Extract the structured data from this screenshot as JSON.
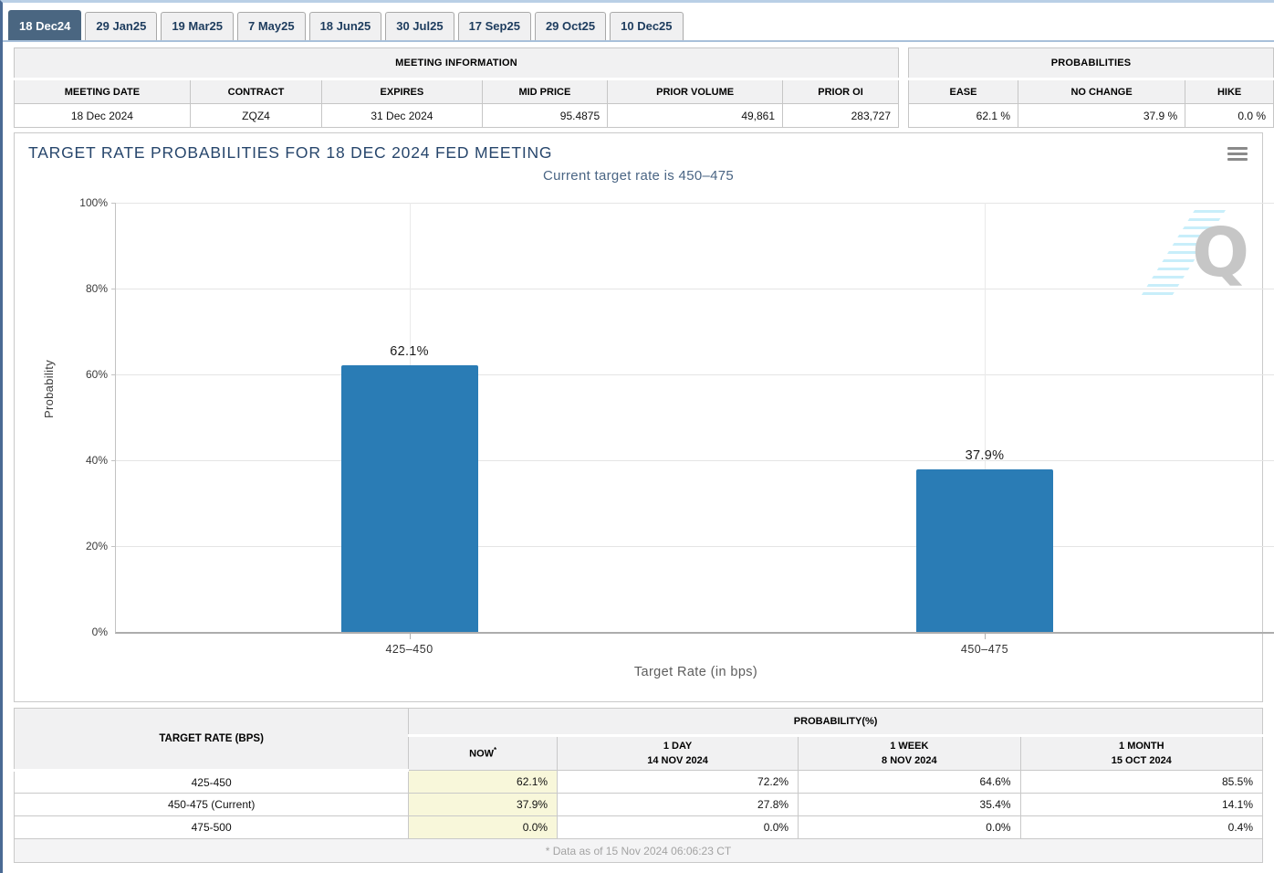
{
  "tabs": [
    {
      "label": "18 Dec24",
      "active": true
    },
    {
      "label": "29 Jan25",
      "active": false
    },
    {
      "label": "19 Mar25",
      "active": false
    },
    {
      "label": "7 May25",
      "active": false
    },
    {
      "label": "18 Jun25",
      "active": false
    },
    {
      "label": "30 Jul25",
      "active": false
    },
    {
      "label": "17 Sep25",
      "active": false
    },
    {
      "label": "29 Oct25",
      "active": false
    },
    {
      "label": "10 Dec25",
      "active": false
    }
  ],
  "meeting_information": {
    "title": "MEETING INFORMATION",
    "columns": [
      "MEETING DATE",
      "CONTRACT",
      "EXPIRES",
      "MID PRICE",
      "PRIOR VOLUME",
      "PRIOR OI"
    ],
    "values": [
      "18 Dec 2024",
      "ZQZ4",
      "31 Dec 2024",
      "95.4875",
      "49,861",
      "283,727"
    ]
  },
  "probabilities_summary": {
    "title": "PROBABILITIES",
    "columns": [
      "EASE",
      "NO CHANGE",
      "HIKE"
    ],
    "values": [
      "62.1 %",
      "37.9 %",
      "0.0 %"
    ]
  },
  "chart": {
    "title": "TARGET RATE PROBABILITIES FOR 18 DEC 2024 FED MEETING",
    "subtitle": "Current target rate is 450–475",
    "watermark_letter": "Q"
  },
  "chart_data": {
    "type": "bar",
    "categories": [
      "425–450",
      "450–475"
    ],
    "values": [
      62.1,
      37.9
    ],
    "value_labels": [
      "62.1%",
      "37.9%"
    ],
    "title": "TARGET RATE PROBABILITIES FOR 18 DEC 2024 FED MEETING",
    "subtitle": "Current target rate is 450-475",
    "xlabel": "Target Rate (in bps)",
    "ylabel": "Probability",
    "ylim": [
      0,
      100
    ],
    "yticks": [
      "0%",
      "20%",
      "40%",
      "60%",
      "80%",
      "100%"
    ],
    "bar_color": "#2a7cb5",
    "grid": true,
    "legend": false
  },
  "probability_table": {
    "rate_header": "TARGET RATE (BPS)",
    "group_header": "PROBABILITY(%)",
    "col_now": "NOW",
    "col_now_sup": "*",
    "col_day_line1": "1 DAY",
    "col_day_line2": "14 NOV 2024",
    "col_week_line1": "1 WEEK",
    "col_week_line2": "8 NOV 2024",
    "col_month_line1": "1 MONTH",
    "col_month_line2": "15 OCT 2024",
    "rows": [
      [
        "425-450",
        "62.1%",
        "72.2%",
        "64.6%",
        "85.5%"
      ],
      [
        "450-475 (Current)",
        "37.9%",
        "27.8%",
        "35.4%",
        "14.1%"
      ],
      [
        "475-500",
        "0.0%",
        "0.0%",
        "0.0%",
        "0.4%"
      ]
    ],
    "footnote": "* Data as of 15 Nov 2024 06:06:23 CT"
  },
  "colors": {
    "bar": "#2a7cb5",
    "active_tab": "#4a6681",
    "now_highlight": "#f8f7da",
    "title_text": "#27466c"
  }
}
